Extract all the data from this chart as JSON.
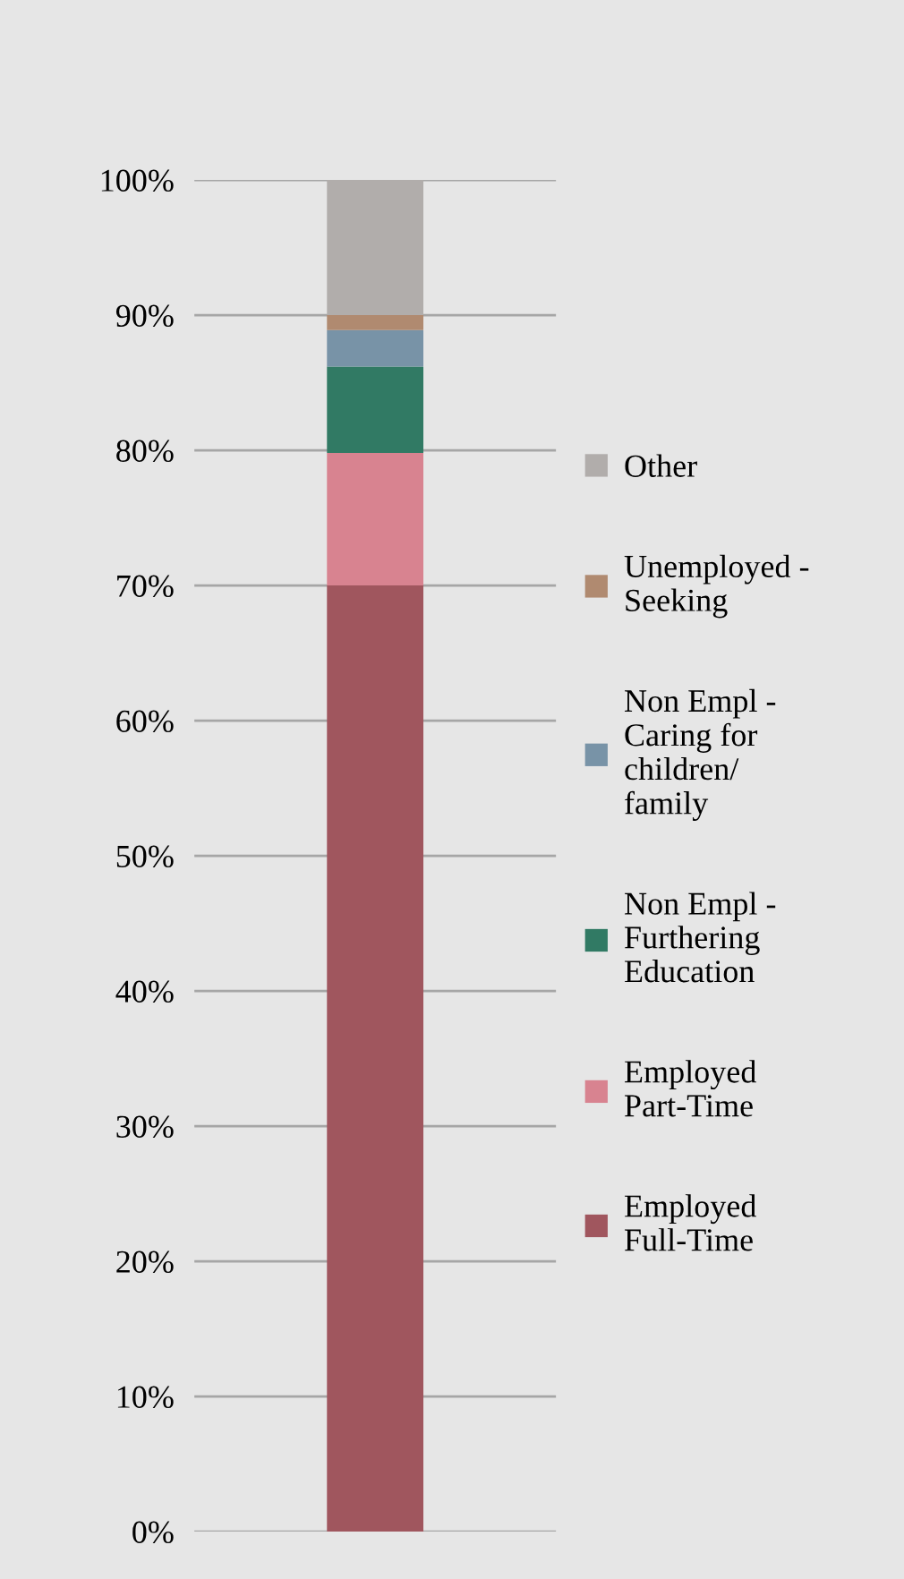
{
  "chart_data": {
    "type": "bar",
    "stacked": true,
    "categories": [
      null
    ],
    "series": [
      {
        "name": "Employed Full-Time",
        "color": "#a0565e",
        "values": [
          70.0
        ]
      },
      {
        "name": "Employed Part-Time",
        "color": "#d88390",
        "values": [
          9.8
        ]
      },
      {
        "name": "Non Empl - Furthering Education",
        "color": "#317a64",
        "values": [
          6.4
        ]
      },
      {
        "name": "Non Empl - Caring for children/ family",
        "color": "#7893a7",
        "values": [
          2.7
        ]
      },
      {
        "name": "Unemployed - Seeking",
        "color": "#b08a70",
        "values": [
          1.1
        ]
      },
      {
        "name": "Other",
        "color": "#b1adab",
        "values": [
          10.0
        ]
      }
    ],
    "ylim": [
      0,
      100
    ],
    "yticks": [
      {
        "value": 0,
        "label": "0%"
      },
      {
        "value": 10,
        "label": "10%"
      },
      {
        "value": 20,
        "label": "20%"
      },
      {
        "value": 30,
        "label": "30%"
      },
      {
        "value": 40,
        "label": "40%"
      },
      {
        "value": 50,
        "label": "50%"
      },
      {
        "value": 60,
        "label": "60%"
      },
      {
        "value": 70,
        "label": "70%"
      },
      {
        "value": 80,
        "label": "80%"
      },
      {
        "value": 90,
        "label": "90%"
      },
      {
        "value": 100,
        "label": "100%"
      }
    ],
    "grid": "y",
    "legend": "right"
  }
}
